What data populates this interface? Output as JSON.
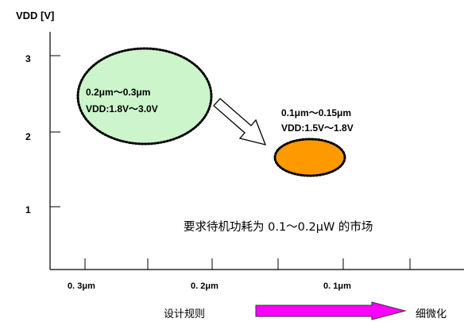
{
  "chart_data": {
    "type": "scatter",
    "title": "",
    "ylabel": "VDD [V]",
    "xlabel": "设计规则",
    "x_direction_label": "细微化",
    "x_ticks": [
      "0. 3μm",
      "0. 2μm",
      "0. 1μm"
    ],
    "y_ticks": [
      "3",
      "2",
      "1"
    ],
    "ylim": [
      0.3,
      3.5
    ],
    "grid": false,
    "regions": [
      {
        "line1": "0.2μm～0.3μm",
        "line2": "VDD:1.8V～3.0V",
        "x_range": [
          "0.2μm",
          "0.3μm"
        ],
        "vdd_range": [
          1.8,
          3.0
        ],
        "fill": "#ccf5cc"
      },
      {
        "line1": "0.1μm～0.15μm",
        "line2": "VDD:1.5V～1.8V",
        "x_range": [
          "0.1μm",
          "0.15μm"
        ],
        "vdd_range": [
          1.5,
          1.8
        ],
        "fill": "#ff9900"
      }
    ],
    "annotation": "要求待机功耗为 0.1～0.2μW 的市场",
    "colors": {
      "axis": "#000000",
      "arrow_fill": "#ff00ff",
      "outline": "#000000"
    }
  }
}
